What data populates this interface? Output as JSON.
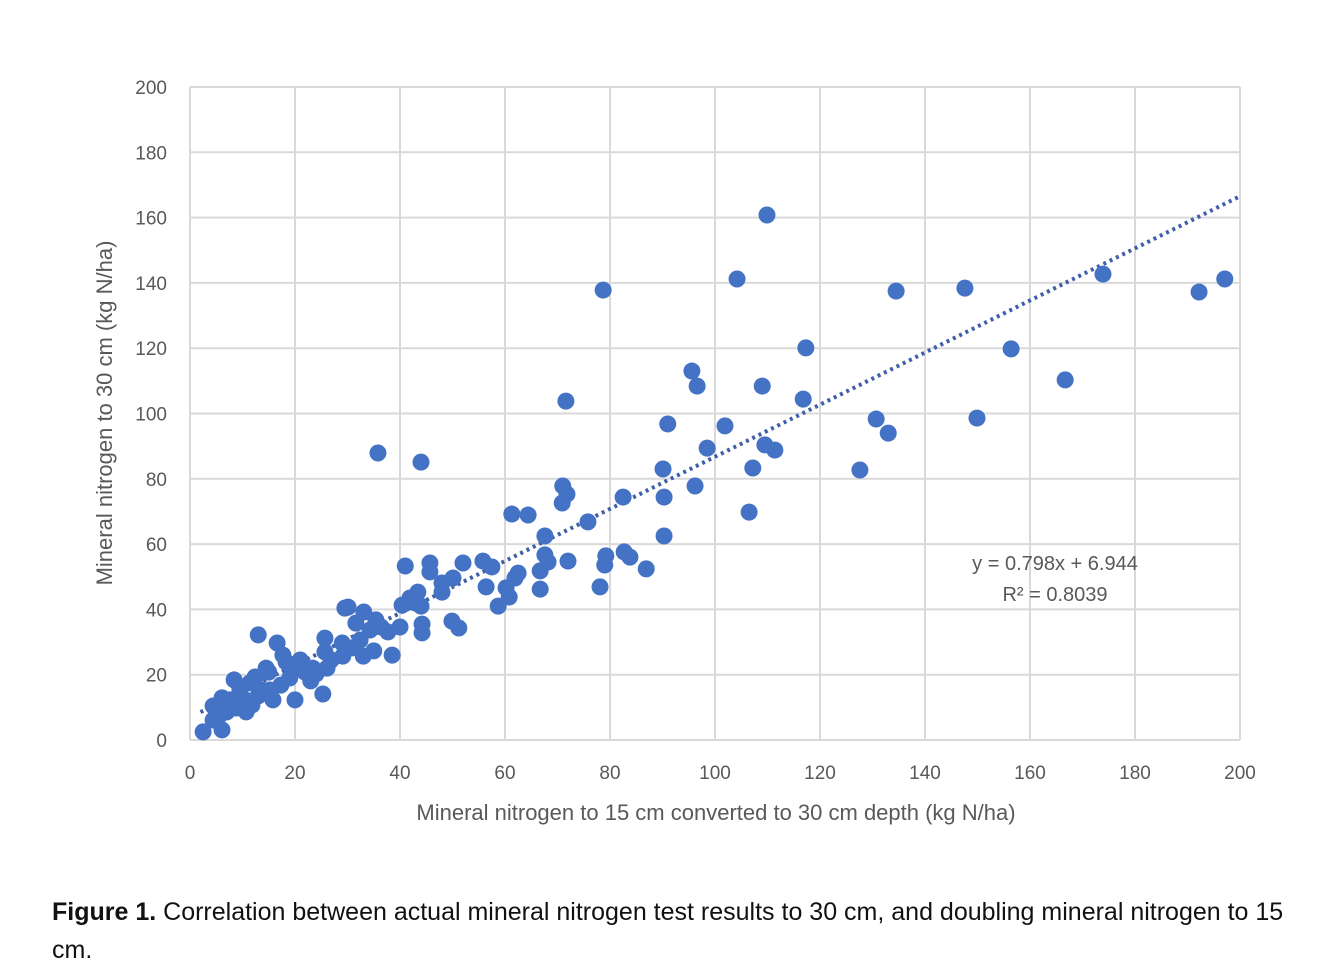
{
  "chart_data": {
    "type": "scatter",
    "xlabel": "Mineral nitrogen to 15 cm converted to 30 cm depth (kg N/ha)",
    "ylabel": "Mineral nitrogen to 30 cm (kg N/ha)",
    "xlim": [
      0,
      200
    ],
    "ylim": [
      0,
      200
    ],
    "xticks": [
      0,
      20,
      40,
      60,
      80,
      100,
      120,
      140,
      160,
      180,
      200
    ],
    "yticks": [
      0,
      20,
      40,
      60,
      80,
      100,
      120,
      140,
      160,
      180,
      200
    ],
    "grid": true,
    "marker_color": "#4472C4",
    "trendline": {
      "type": "linear",
      "slope": 0.798,
      "intercept": 6.944,
      "style": "dotted",
      "color": "#3F5FA8",
      "equation_label": "y = 0.798x + 6.944",
      "r2_label": "R² = 0.8039"
    },
    "points": [
      [
        109.9,
        160.8
      ],
      [
        104.2,
        141.2
      ],
      [
        78.7,
        137.8
      ],
      [
        173.9,
        142.7
      ],
      [
        197.1,
        141.2
      ],
      [
        192.2,
        137.2
      ],
      [
        147.6,
        138.4
      ],
      [
        134.5,
        137.5
      ],
      [
        156.4,
        119.8
      ],
      [
        117.3,
        120.1
      ],
      [
        166.7,
        110.3
      ],
      [
        95.6,
        113
      ],
      [
        96.6,
        108.4
      ],
      [
        109,
        108.4
      ],
      [
        116.8,
        104.4
      ],
      [
        71.6,
        103.8
      ],
      [
        35.8,
        87.9
      ],
      [
        44,
        85.1
      ],
      [
        130.7,
        98.3
      ],
      [
        149.9,
        98.6
      ],
      [
        133,
        94
      ],
      [
        91,
        96.8
      ],
      [
        101.9,
        96.2
      ],
      [
        98.5,
        89.4
      ],
      [
        109.5,
        90.4
      ],
      [
        111.4,
        88.8
      ],
      [
        127.6,
        82.7
      ],
      [
        107.2,
        83.3
      ],
      [
        90.1,
        83
      ],
      [
        96.2,
        77.8
      ],
      [
        71,
        77.8
      ],
      [
        71.8,
        75.3
      ],
      [
        70.9,
        72.6
      ],
      [
        90.3,
        74.4
      ],
      [
        82.5,
        74.4
      ],
      [
        106.5,
        69.8
      ],
      [
        61.3,
        69.2
      ],
      [
        64.4,
        68.9
      ],
      [
        75.8,
        66.8
      ],
      [
        67.6,
        62.5
      ],
      [
        90.3,
        62.5
      ],
      [
        67.6,
        56.7
      ],
      [
        68.2,
        54.5
      ],
      [
        72,
        54.8
      ],
      [
        79.2,
        56.4
      ],
      [
        79,
        53.6
      ],
      [
        82.7,
        57.6
      ],
      [
        83.8,
        56
      ],
      [
        86.9,
        52.4
      ],
      [
        66.7,
        51.8
      ],
      [
        62.5,
        51.1
      ],
      [
        61.9,
        49.6
      ],
      [
        41,
        53.3
      ],
      [
        45.7,
        54.2
      ],
      [
        45.7,
        51.5
      ],
      [
        52,
        54.2
      ],
      [
        55.8,
        54.8
      ],
      [
        57.5,
        53
      ],
      [
        50.1,
        49.6
      ],
      [
        48,
        48.1
      ],
      [
        48,
        45.3
      ],
      [
        56.4,
        46.9
      ],
      [
        60.2,
        46.6
      ],
      [
        60.8,
        43.8
      ],
      [
        66.7,
        46.2
      ],
      [
        78.1,
        46.9
      ],
      [
        58.7,
        41
      ],
      [
        49.9,
        36.4
      ],
      [
        51.2,
        34.3
      ],
      [
        43.4,
        45.3
      ],
      [
        44,
        41
      ],
      [
        40.4,
        41.3
      ],
      [
        41.9,
        43.5
      ],
      [
        43,
        41.9
      ],
      [
        44.2,
        35.5
      ],
      [
        44.2,
        32.8
      ],
      [
        40,
        34.6
      ],
      [
        38.5,
        26
      ],
      [
        29.5,
        40.4
      ],
      [
        30.1,
        40.7
      ],
      [
        33.1,
        39.2
      ],
      [
        35.4,
        36.8
      ],
      [
        31.6,
        35.8
      ],
      [
        34.3,
        33.7
      ],
      [
        36.4,
        34.6
      ],
      [
        37.7,
        33.1
      ],
      [
        32.4,
        30.6
      ],
      [
        29,
        29.7
      ],
      [
        30.9,
        28.2
      ],
      [
        35,
        27.3
      ],
      [
        33,
        25.7
      ],
      [
        29.1,
        25.7
      ],
      [
        25.7,
        31.2
      ],
      [
        25.7,
        27
      ],
      [
        25.3,
        14.1
      ],
      [
        26.9,
        24.5
      ],
      [
        26.1,
        22
      ],
      [
        23.4,
        22
      ],
      [
        23,
        18.1
      ],
      [
        21,
        24.5
      ],
      [
        13,
        32.2
      ],
      [
        16.6,
        29.7
      ],
      [
        17.7,
        26
      ],
      [
        19.8,
        21.4
      ],
      [
        20,
        12.3
      ],
      [
        15.8,
        12.3
      ],
      [
        18.3,
        23.9
      ],
      [
        19,
        19
      ],
      [
        15,
        20.8
      ],
      [
        17.3,
        16.8
      ],
      [
        12.4,
        19.3
      ],
      [
        11.4,
        17.5
      ],
      [
        8.4,
        18.4
      ],
      [
        9.5,
        15.3
      ],
      [
        13,
        13.5
      ],
      [
        11.8,
        10.7
      ],
      [
        8.8,
        9.8
      ],
      [
        10.5,
        12.3
      ],
      [
        6.1,
        12.9
      ],
      [
        4.4,
        10.4
      ],
      [
        5.7,
        7.7
      ],
      [
        4.4,
        6.1
      ],
      [
        7,
        8.6
      ],
      [
        6.1,
        3.1
      ],
      [
        2.5,
        2.5
      ],
      [
        14.5,
        22
      ],
      [
        21.9,
        20.8
      ],
      [
        24,
        20.2
      ],
      [
        15.2,
        15.3
      ],
      [
        13.7,
        15.3
      ],
      [
        7.6,
        12.3
      ],
      [
        10.7,
        8.6
      ]
    ]
  },
  "caption": {
    "label": "Figure 1.",
    "text": " Correlation between actual mineral nitrogen test results to 30 cm, and doubling mineral nitrogen to 15 cm."
  }
}
